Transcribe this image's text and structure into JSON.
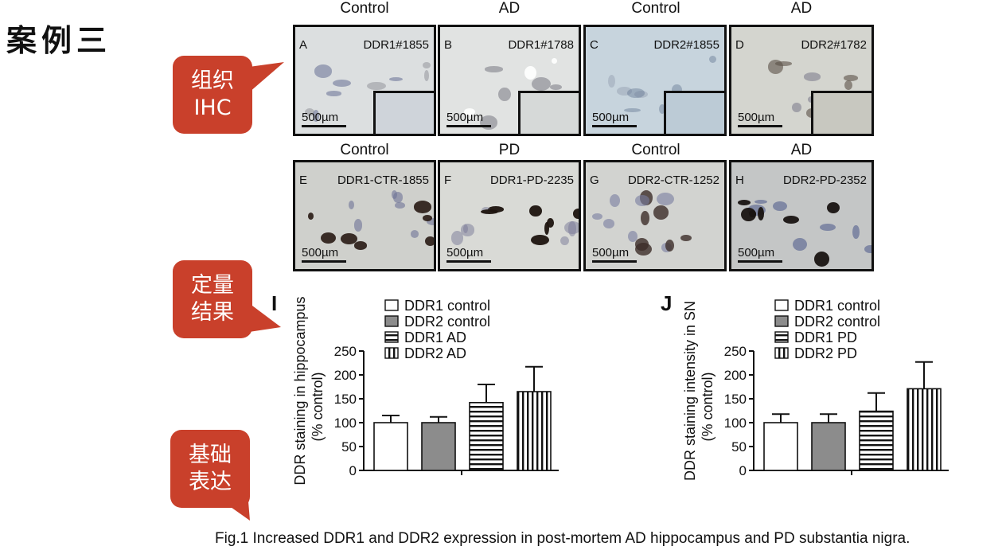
{
  "heading": "案例三",
  "callouts": [
    {
      "line1": "组织",
      "line2": "IHC"
    },
    {
      "line1": "定量",
      "line2": "结果"
    },
    {
      "line1": "基础",
      "line2": "表达"
    }
  ],
  "row1_labels": [
    "Control",
    "AD",
    "Control",
    "AD"
  ],
  "row2_labels": [
    "Control",
    "PD",
    "Control",
    "AD"
  ],
  "panels": [
    {
      "letter": "A",
      "code": "DDR1#1855",
      "scale": "500µm"
    },
    {
      "letter": "B",
      "code": "DDR1#1788",
      "scale": "500µm"
    },
    {
      "letter": "C",
      "code": "DDR2#1855",
      "scale": "500µm"
    },
    {
      "letter": "D",
      "code": "DDR2#1782",
      "scale": "500µm"
    },
    {
      "letter": "E",
      "code": "DDR1-CTR-1855",
      "scale": "500µm"
    },
    {
      "letter": "F",
      "code": "DDR1-PD-2235",
      "scale": "500µm"
    },
    {
      "letter": "G",
      "code": "DDR2-CTR-1252",
      "scale": "500µm"
    },
    {
      "letter": "H",
      "code": "DDR2-PD-2352",
      "scale": "500µm"
    }
  ],
  "caption": "Fig.1 Increased DDR1 and DDR2 expression in post-mortem AD hippocampus and PD substantia nigra.",
  "chart_data": [
    {
      "type": "bar",
      "panel_letter": "I",
      "ylabel_line1": "DDR staining in hippocampus",
      "ylabel_line2": "(% control)",
      "ylim": [
        0,
        250
      ],
      "yticks": [
        0,
        50,
        100,
        150,
        200,
        250
      ],
      "categories": [
        "DDR1 control",
        "DDR2 control",
        "DDR1 AD",
        "DDR2 AD"
      ],
      "values": [
        100,
        100,
        142,
        165
      ],
      "errors": [
        15,
        12,
        38,
        52
      ],
      "fills": [
        "white",
        "gray",
        "hstripes",
        "vstripes"
      ]
    },
    {
      "type": "bar",
      "panel_letter": "J",
      "ylabel_line1": "DDR staining intensity in SN",
      "ylabel_line2": "(% control)",
      "ylim": [
        0,
        250
      ],
      "yticks": [
        0,
        50,
        100,
        150,
        200,
        250
      ],
      "categories": [
        "DDR1 control",
        "DDR2 control",
        "DDR1 PD",
        "DDR2 PD"
      ],
      "values": [
        100,
        100,
        124,
        171
      ],
      "errors": [
        18,
        18,
        38,
        56
      ],
      "fills": [
        "white",
        "gray",
        "hstripes",
        "vstripes"
      ]
    }
  ],
  "colors": {
    "callout": "#c9402b",
    "gray_bar": "#8c8c8c"
  }
}
